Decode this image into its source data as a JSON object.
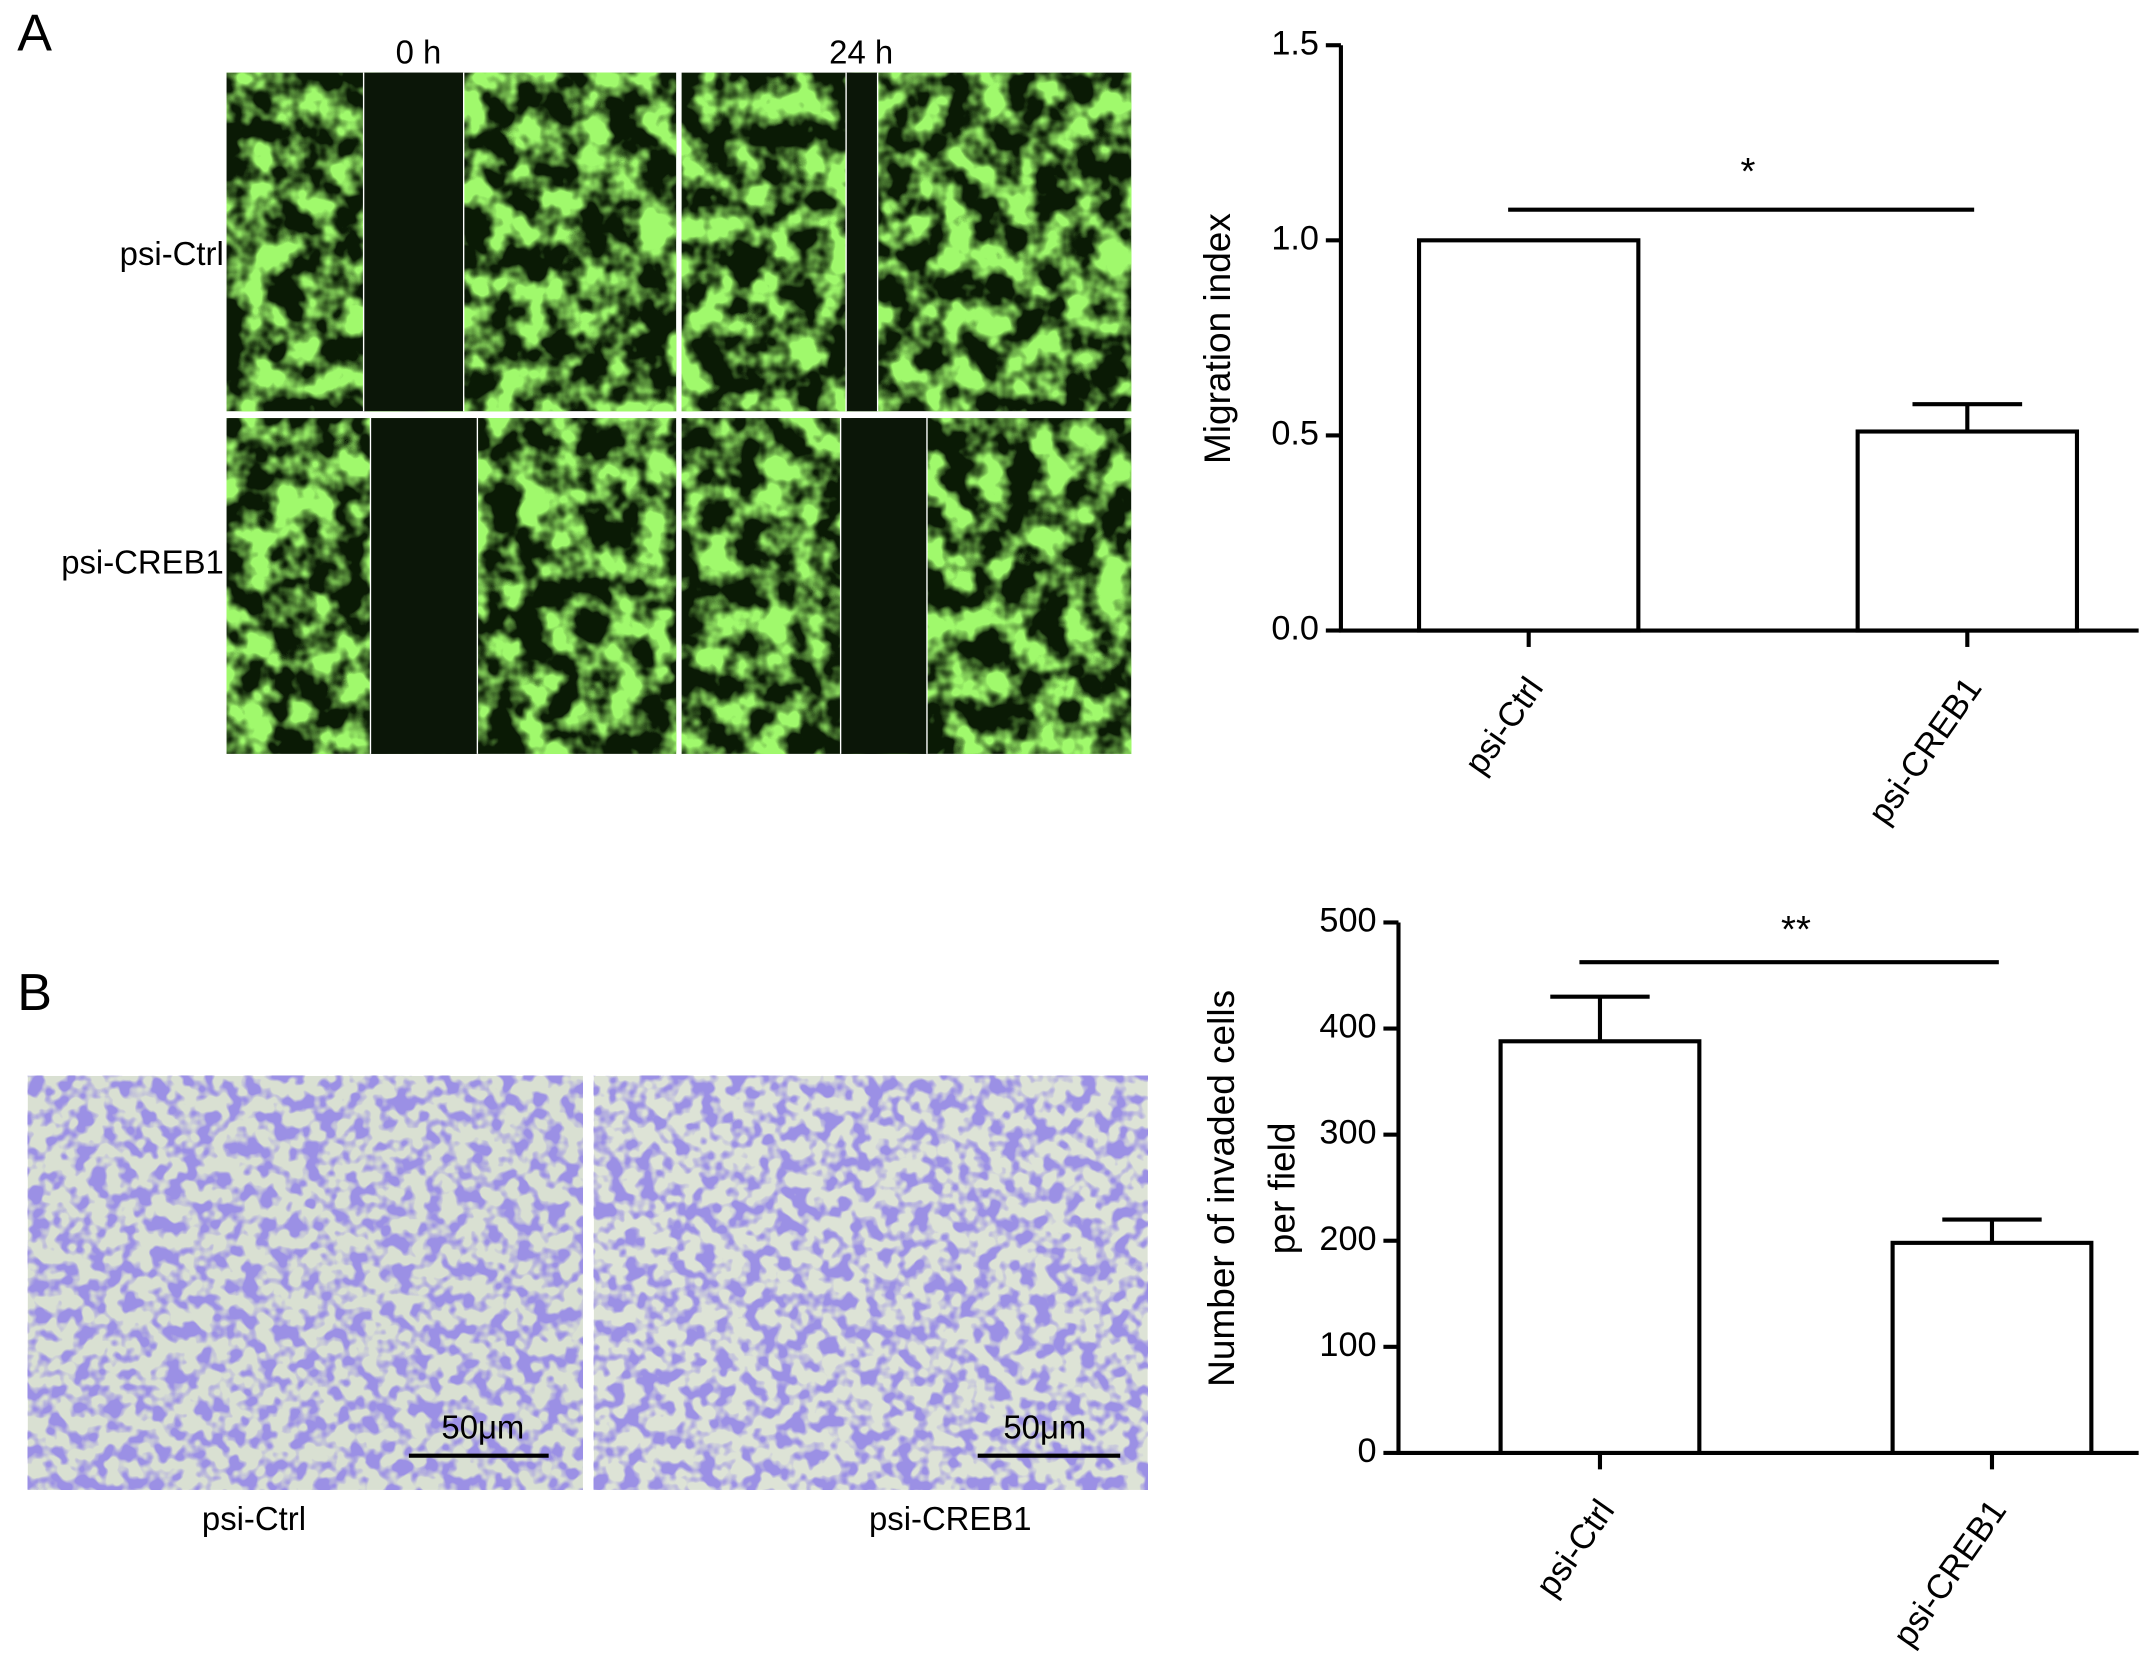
{
  "panel_a": {
    "label": "A",
    "columns": [
      "0 h",
      "24 h"
    ],
    "rows": [
      "psi-Ctrl",
      "psi-CREB1"
    ]
  },
  "panel_b": {
    "label": "B",
    "scale_bars": [
      "50μm",
      "50μm"
    ],
    "images": [
      "psi-Ctrl",
      "psi-CREB1"
    ]
  },
  "chart_data": [
    {
      "type": "bar",
      "y_label": "Migration index",
      "categories": [
        "psi-Ctrl",
        "psi-CREB1"
      ],
      "values": [
        1.0,
        0.51
      ],
      "errors": [
        null,
        0.07
      ],
      "color": "#ffffff",
      "ylim": [
        0,
        1.5
      ],
      "yticks": [
        {
          "value": 0,
          "label": "0.0"
        },
        0.5,
        {
          "value": 1,
          "label": "1.0"
        },
        1.5
      ],
      "annotation": "*"
    },
    {
      "type": "bar",
      "y_label": [
        "Number of invaded cells",
        "per field"
      ],
      "categories": [
        "psi-Ctrl",
        "psi-CREB1"
      ],
      "values": [
        388,
        198
      ],
      "errors": [
        42,
        22
      ],
      "color": "#ffffff",
      "ylim": [
        0,
        500
      ],
      "yticks": [
        0,
        100,
        200,
        300,
        400,
        500
      ],
      "annotation": "**"
    }
  ]
}
